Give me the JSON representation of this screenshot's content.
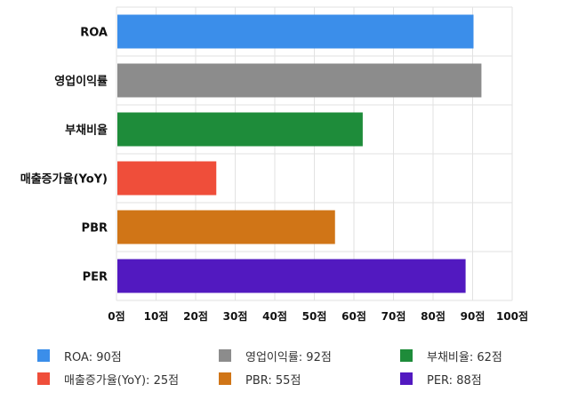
{
  "chart_data": {
    "type": "bar",
    "orientation": "horizontal",
    "categories": [
      "ROA",
      "영업이익률",
      "부채비율",
      "매출증가율(YoY)",
      "PBR",
      "PER"
    ],
    "values": [
      90,
      92,
      62,
      25,
      55,
      88
    ],
    "colors": [
      "#3b8eea",
      "#8c8c8c",
      "#1e8c3a",
      "#ef4e3a",
      "#d07517",
      "#5219c0"
    ],
    "title": "",
    "xlabel": "",
    "ylabel": "",
    "xlim": [
      0,
      100
    ],
    "xticks": [
      0,
      10,
      20,
      30,
      40,
      50,
      60,
      70,
      80,
      90,
      100
    ],
    "tick_suffix": "점",
    "grid": true,
    "legend_position": "bottom"
  },
  "legend": [
    {
      "label": "ROA: 90점",
      "color": "#3b8eea"
    },
    {
      "label": "영업이익률: 92점",
      "color": "#8c8c8c"
    },
    {
      "label": "부채비율: 62점",
      "color": "#1e8c3a"
    },
    {
      "label": "매출증가율(YoY): 25점",
      "color": "#ef4e3a"
    },
    {
      "label": "PBR: 55점",
      "color": "#d07517"
    },
    {
      "label": "PER: 88점",
      "color": "#5219c0"
    }
  ]
}
